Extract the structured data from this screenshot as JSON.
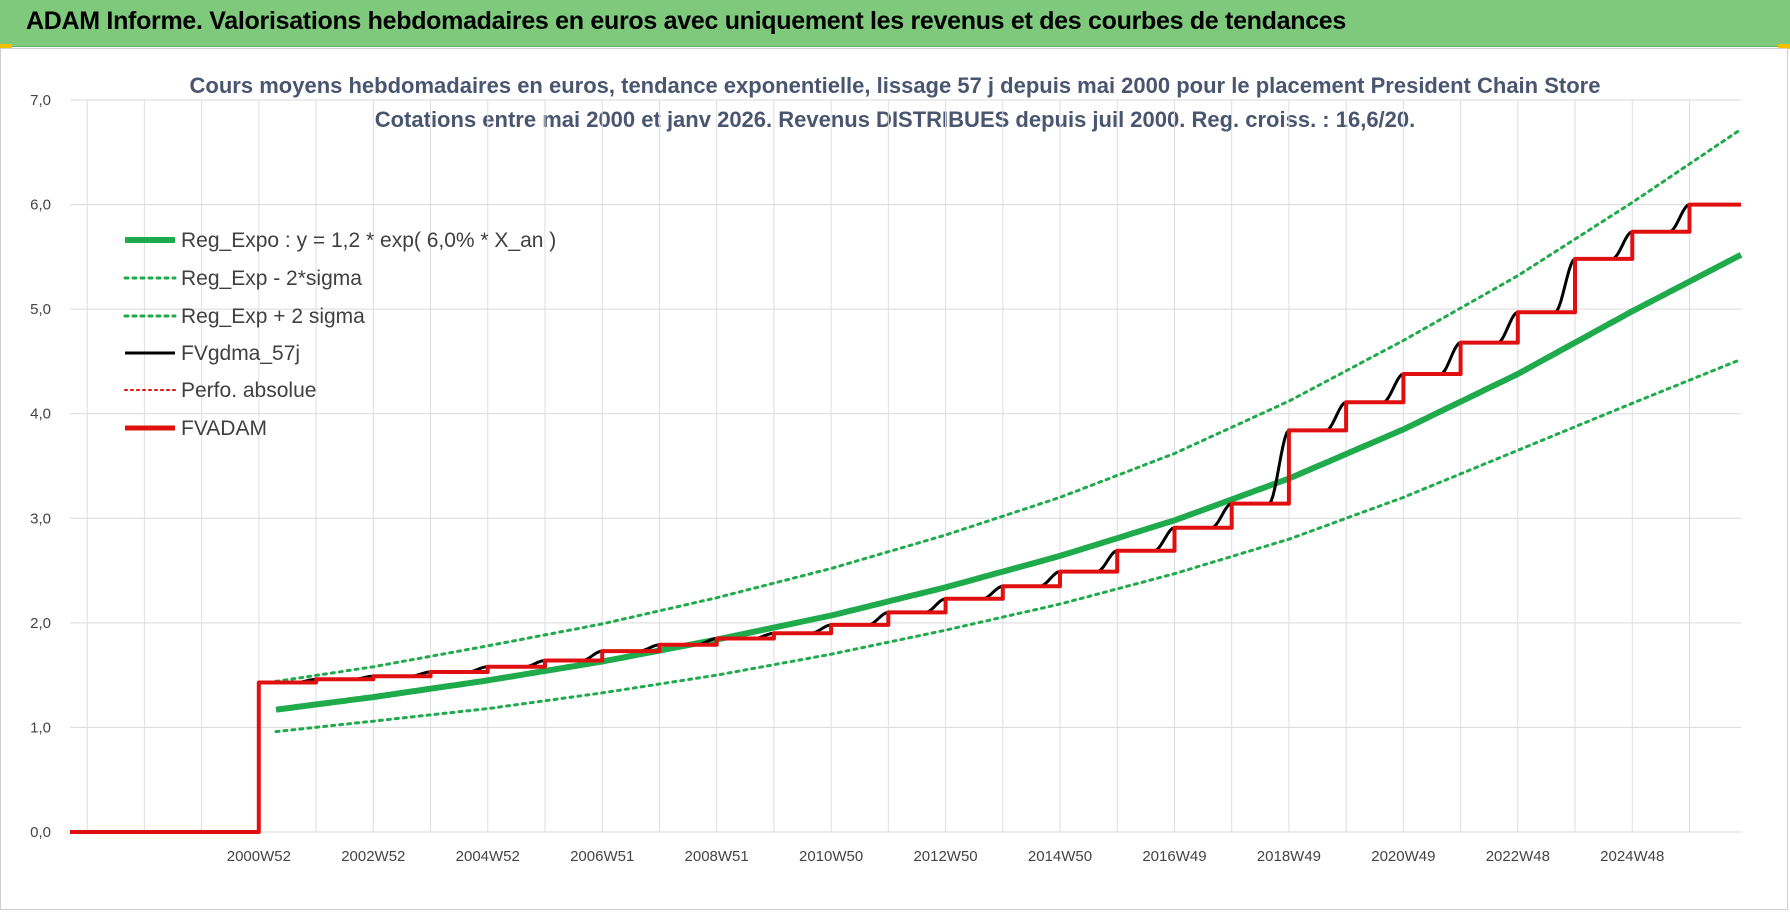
{
  "banner": {
    "title": "ADAM Informe. Valorisations hebdomadaires en euros avec uniquement les revenus et des courbes de tendances"
  },
  "colors": {
    "banner_bg": "#7ec97c",
    "trend_green": "#1fab4b",
    "price_black": "#000000",
    "adam_red": "#e01010"
  },
  "chart_data": {
    "type": "line",
    "title_lines": [
      "Cours moyens hebdomadaires en euros, tendance exponentielle, lissage 57 j depuis mai 2000 pour le placement President Chain Store",
      "Cotations entre mai 2000 et janv 2026. Revenus DISTRIBUES depuis juil 2000. Reg. croiss. : 16,6/20."
    ],
    "ylim": [
      0,
      7
    ],
    "y_ticks": [
      "0,0",
      "1,0",
      "2,0",
      "3,0",
      "4,0",
      "5,0",
      "6,0",
      "7,0"
    ],
    "x_range": [
      1997.7,
      2026.9
    ],
    "x_ticks": [
      {
        "label": "2000W52",
        "x": 2001.0
      },
      {
        "label": "2002W52",
        "x": 2003.0
      },
      {
        "label": "2004W52",
        "x": 2005.0
      },
      {
        "label": "2006W51",
        "x": 2007.0
      },
      {
        "label": "2008W51",
        "x": 2009.0
      },
      {
        "label": "2010W50",
        "x": 2011.0
      },
      {
        "label": "2012W50",
        "x": 2013.0
      },
      {
        "label": "2014W50",
        "x": 2015.0
      },
      {
        "label": "2016W49",
        "x": 2017.0
      },
      {
        "label": "2018W49",
        "x": 2019.0
      },
      {
        "label": "2020W49",
        "x": 2021.0
      },
      {
        "label": "2022W48",
        "x": 2023.0
      },
      {
        "label": "2024W48",
        "x": 2025.0
      }
    ],
    "grid": true,
    "legend_position": "top-left",
    "series": [
      {
        "name": "Reg_Expo : y = 1,2 * exp( 6,0% *  X_an )",
        "style": "solid-thick",
        "color": "#1fab4b",
        "x": [
          2001.3,
          2003,
          2005,
          2007,
          2009,
          2011,
          2013,
          2015,
          2017,
          2019,
          2021,
          2023,
          2025,
          2026.9
        ],
        "y": [
          1.17,
          1.29,
          1.45,
          1.63,
          1.84,
          2.07,
          2.34,
          2.64,
          2.98,
          3.38,
          3.85,
          4.38,
          4.98,
          5.52
        ]
      },
      {
        "name": "Reg_Exp - 2*sigma",
        "style": "dotted",
        "color": "#1fab4b",
        "x": [
          2001.3,
          2003,
          2005,
          2007,
          2009,
          2011,
          2013,
          2015,
          2017,
          2019,
          2021,
          2023,
          2025,
          2026.9
        ],
        "y": [
          0.96,
          1.06,
          1.18,
          1.33,
          1.5,
          1.7,
          1.93,
          2.18,
          2.47,
          2.8,
          3.2,
          3.65,
          4.1,
          4.52
        ]
      },
      {
        "name": "Reg_Exp + 2 sigma",
        "style": "dotted",
        "color": "#1fab4b",
        "x": [
          2001.3,
          2003,
          2005,
          2007,
          2009,
          2011,
          2013,
          2015,
          2017,
          2019,
          2021,
          2023,
          2025,
          2026.9
        ],
        "y": [
          1.44,
          1.58,
          1.78,
          1.99,
          2.24,
          2.52,
          2.84,
          3.2,
          3.62,
          4.12,
          4.7,
          5.32,
          6.02,
          6.72
        ]
      },
      {
        "name": "FVgdma_57j",
        "style": "solid",
        "color": "#000000",
        "x": [
          1997.7,
          2001.0,
          2001.0,
          2002.0,
          2003.0,
          2004.0,
          2005.0,
          2006.0,
          2007.0,
          2008.0,
          2009.0,
          2010.0,
          2011.0,
          2012.0,
          2013.0,
          2014.0,
          2015.0,
          2016.0,
          2017.0,
          2018.0,
          2019.0,
          2020.0,
          2021.0,
          2022.0,
          2023.0,
          2024.0,
          2025.0,
          2026.0,
          2026.9
        ],
        "y": [
          0.0,
          0.0,
          1.43,
          1.46,
          1.49,
          1.53,
          1.58,
          1.64,
          1.73,
          1.79,
          1.85,
          1.9,
          1.98,
          2.1,
          2.23,
          2.35,
          2.49,
          2.69,
          2.91,
          3.14,
          3.84,
          4.11,
          4.38,
          4.68,
          4.97,
          5.48,
          5.74,
          6.0,
          6.0
        ]
      },
      {
        "name": "Perfo. absolue",
        "style": "dotted",
        "color": "#e01010",
        "x": [
          1997.7,
          2001.0,
          2001.0,
          2002.0,
          2003.0,
          2004.0,
          2005.0,
          2006.0,
          2007.0,
          2008.0,
          2009.0,
          2010.0,
          2011.0,
          2012.0,
          2013.0,
          2014.0,
          2015.0,
          2016.0,
          2017.0,
          2018.0,
          2019.0,
          2020.0,
          2021.0,
          2022.0,
          2023.0,
          2024.0,
          2025.0,
          2026.0,
          2026.9
        ],
        "y": [
          0.0,
          0.0,
          1.43,
          1.46,
          1.49,
          1.53,
          1.58,
          1.64,
          1.73,
          1.79,
          1.85,
          1.9,
          1.98,
          2.1,
          2.23,
          2.35,
          2.49,
          2.69,
          2.91,
          3.14,
          3.84,
          4.11,
          4.38,
          4.68,
          4.97,
          5.48,
          5.74,
          6.0,
          6.0
        ]
      },
      {
        "name": "FVADAM",
        "style": "solid-thick",
        "color": "#e01010",
        "x": [
          1997.7,
          2001.0,
          2001.0,
          2002.0,
          2003.0,
          2004.0,
          2005.0,
          2006.0,
          2007.0,
          2008.0,
          2009.0,
          2010.0,
          2011.0,
          2012.0,
          2013.0,
          2014.0,
          2015.0,
          2016.0,
          2017.0,
          2018.0,
          2019.0,
          2020.0,
          2021.0,
          2022.0,
          2023.0,
          2024.0,
          2025.0,
          2026.0,
          2026.9
        ],
        "y": [
          0.0,
          0.0,
          1.43,
          1.46,
          1.49,
          1.53,
          1.58,
          1.64,
          1.73,
          1.79,
          1.85,
          1.9,
          1.98,
          2.1,
          2.23,
          2.35,
          2.49,
          2.69,
          2.91,
          3.14,
          3.84,
          4.11,
          4.38,
          4.68,
          4.97,
          5.48,
          5.74,
          6.0,
          6.0
        ]
      }
    ]
  }
}
